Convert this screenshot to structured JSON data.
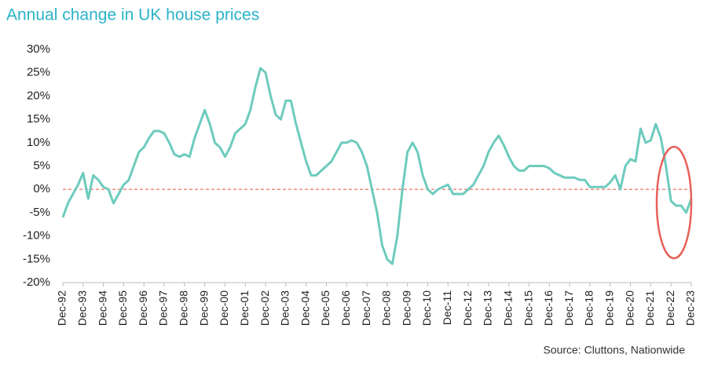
{
  "chart_data": {
    "type": "line",
    "title": "Annual change in UK house prices",
    "source": "Source: Cluttons, Nationwide",
    "color": "#6dcbbd",
    "categories": [
      "Dec-92",
      null,
      null,
      null,
      "Dec-93",
      null,
      null,
      null,
      "Dec-94",
      null,
      null,
      null,
      "Dec-95",
      null,
      null,
      null,
      "Dec-96",
      null,
      null,
      null,
      "Dec-97",
      null,
      null,
      null,
      "Dec-98",
      null,
      null,
      null,
      "Dec-99",
      null,
      null,
      null,
      "Dec-00",
      null,
      null,
      null,
      "Dec-01",
      null,
      null,
      null,
      "Dec-02",
      null,
      null,
      null,
      "Dec-03",
      null,
      null,
      null,
      "Dec-04",
      null,
      null,
      null,
      "Dec-05",
      null,
      null,
      null,
      "Dec-06",
      null,
      null,
      null,
      "Dec-07",
      null,
      null,
      null,
      "Dec-08",
      null,
      null,
      null,
      "Dec-09",
      null,
      null,
      null,
      "Dec-10",
      null,
      null,
      null,
      "Dec-11",
      null,
      null,
      null,
      "Dec-12",
      null,
      null,
      null,
      "Dec-13",
      null,
      null,
      null,
      "Dec-14",
      null,
      null,
      null,
      "Dec-15",
      null,
      null,
      null,
      "Dec-16",
      null,
      null,
      null,
      "Dec-17",
      null,
      null,
      null,
      "Dec-18",
      null,
      null,
      null,
      "Dec-19",
      null,
      null,
      null,
      "Dec-20",
      null,
      null,
      null,
      "Dec-21",
      null,
      null,
      null,
      "Dec-22",
      null,
      null,
      null,
      "Dec-23"
    ],
    "values": [
      -6,
      -3,
      -1,
      1,
      3.5,
      -2,
      3,
      2,
      0.5,
      0,
      -3,
      -1,
      1,
      2,
      5,
      8,
      9,
      11,
      12.5,
      12.5,
      12,
      10,
      7.5,
      7,
      7.5,
      7,
      11,
      14,
      17,
      14,
      10,
      9,
      7,
      9,
      12,
      13,
      14,
      17,
      22,
      26,
      25,
      20,
      16,
      15,
      19,
      19,
      14,
      10,
      6,
      3,
      3,
      4,
      5,
      6,
      8,
      10,
      10,
      10.5,
      10,
      8,
      5,
      0,
      -5,
      -12,
      -15,
      -16,
      -10,
      0,
      8,
      10,
      8,
      3,
      0,
      -1,
      0,
      0.5,
      1,
      -1,
      -1,
      -1,
      0,
      1,
      3,
      5,
      8,
      10,
      11.5,
      9.5,
      7,
      5,
      4,
      4,
      5,
      5,
      5,
      5,
      4.5,
      3.5,
      3,
      2.5,
      2.5,
      2.5,
      2,
      2,
      0.5,
      0.5,
      0.5,
      0.5,
      1.5,
      3,
      0,
      5,
      6.5,
      6,
      13,
      10,
      10.5,
      14,
      11,
      5,
      -2.5,
      -3.5,
      -3.5,
      -5,
      -2
    ],
    "ylim": [
      -20,
      30
    ],
    "yticks": [
      {
        "value": -20,
        "label": "-20%"
      },
      {
        "value": -15,
        "label": "-15%"
      },
      {
        "value": -10,
        "label": "-10%"
      },
      {
        "value": -5,
        "label": "-5%"
      },
      {
        "value": 0,
        "label": "0%"
      },
      {
        "value": 5,
        "label": "5%"
      },
      {
        "value": 10,
        "label": "10%"
      },
      {
        "value": 15,
        "label": "15%"
      },
      {
        "value": 20,
        "label": "20%"
      },
      {
        "value": 25,
        "label": "25%"
      },
      {
        "value": 30,
        "label": "30%"
      }
    ]
  }
}
